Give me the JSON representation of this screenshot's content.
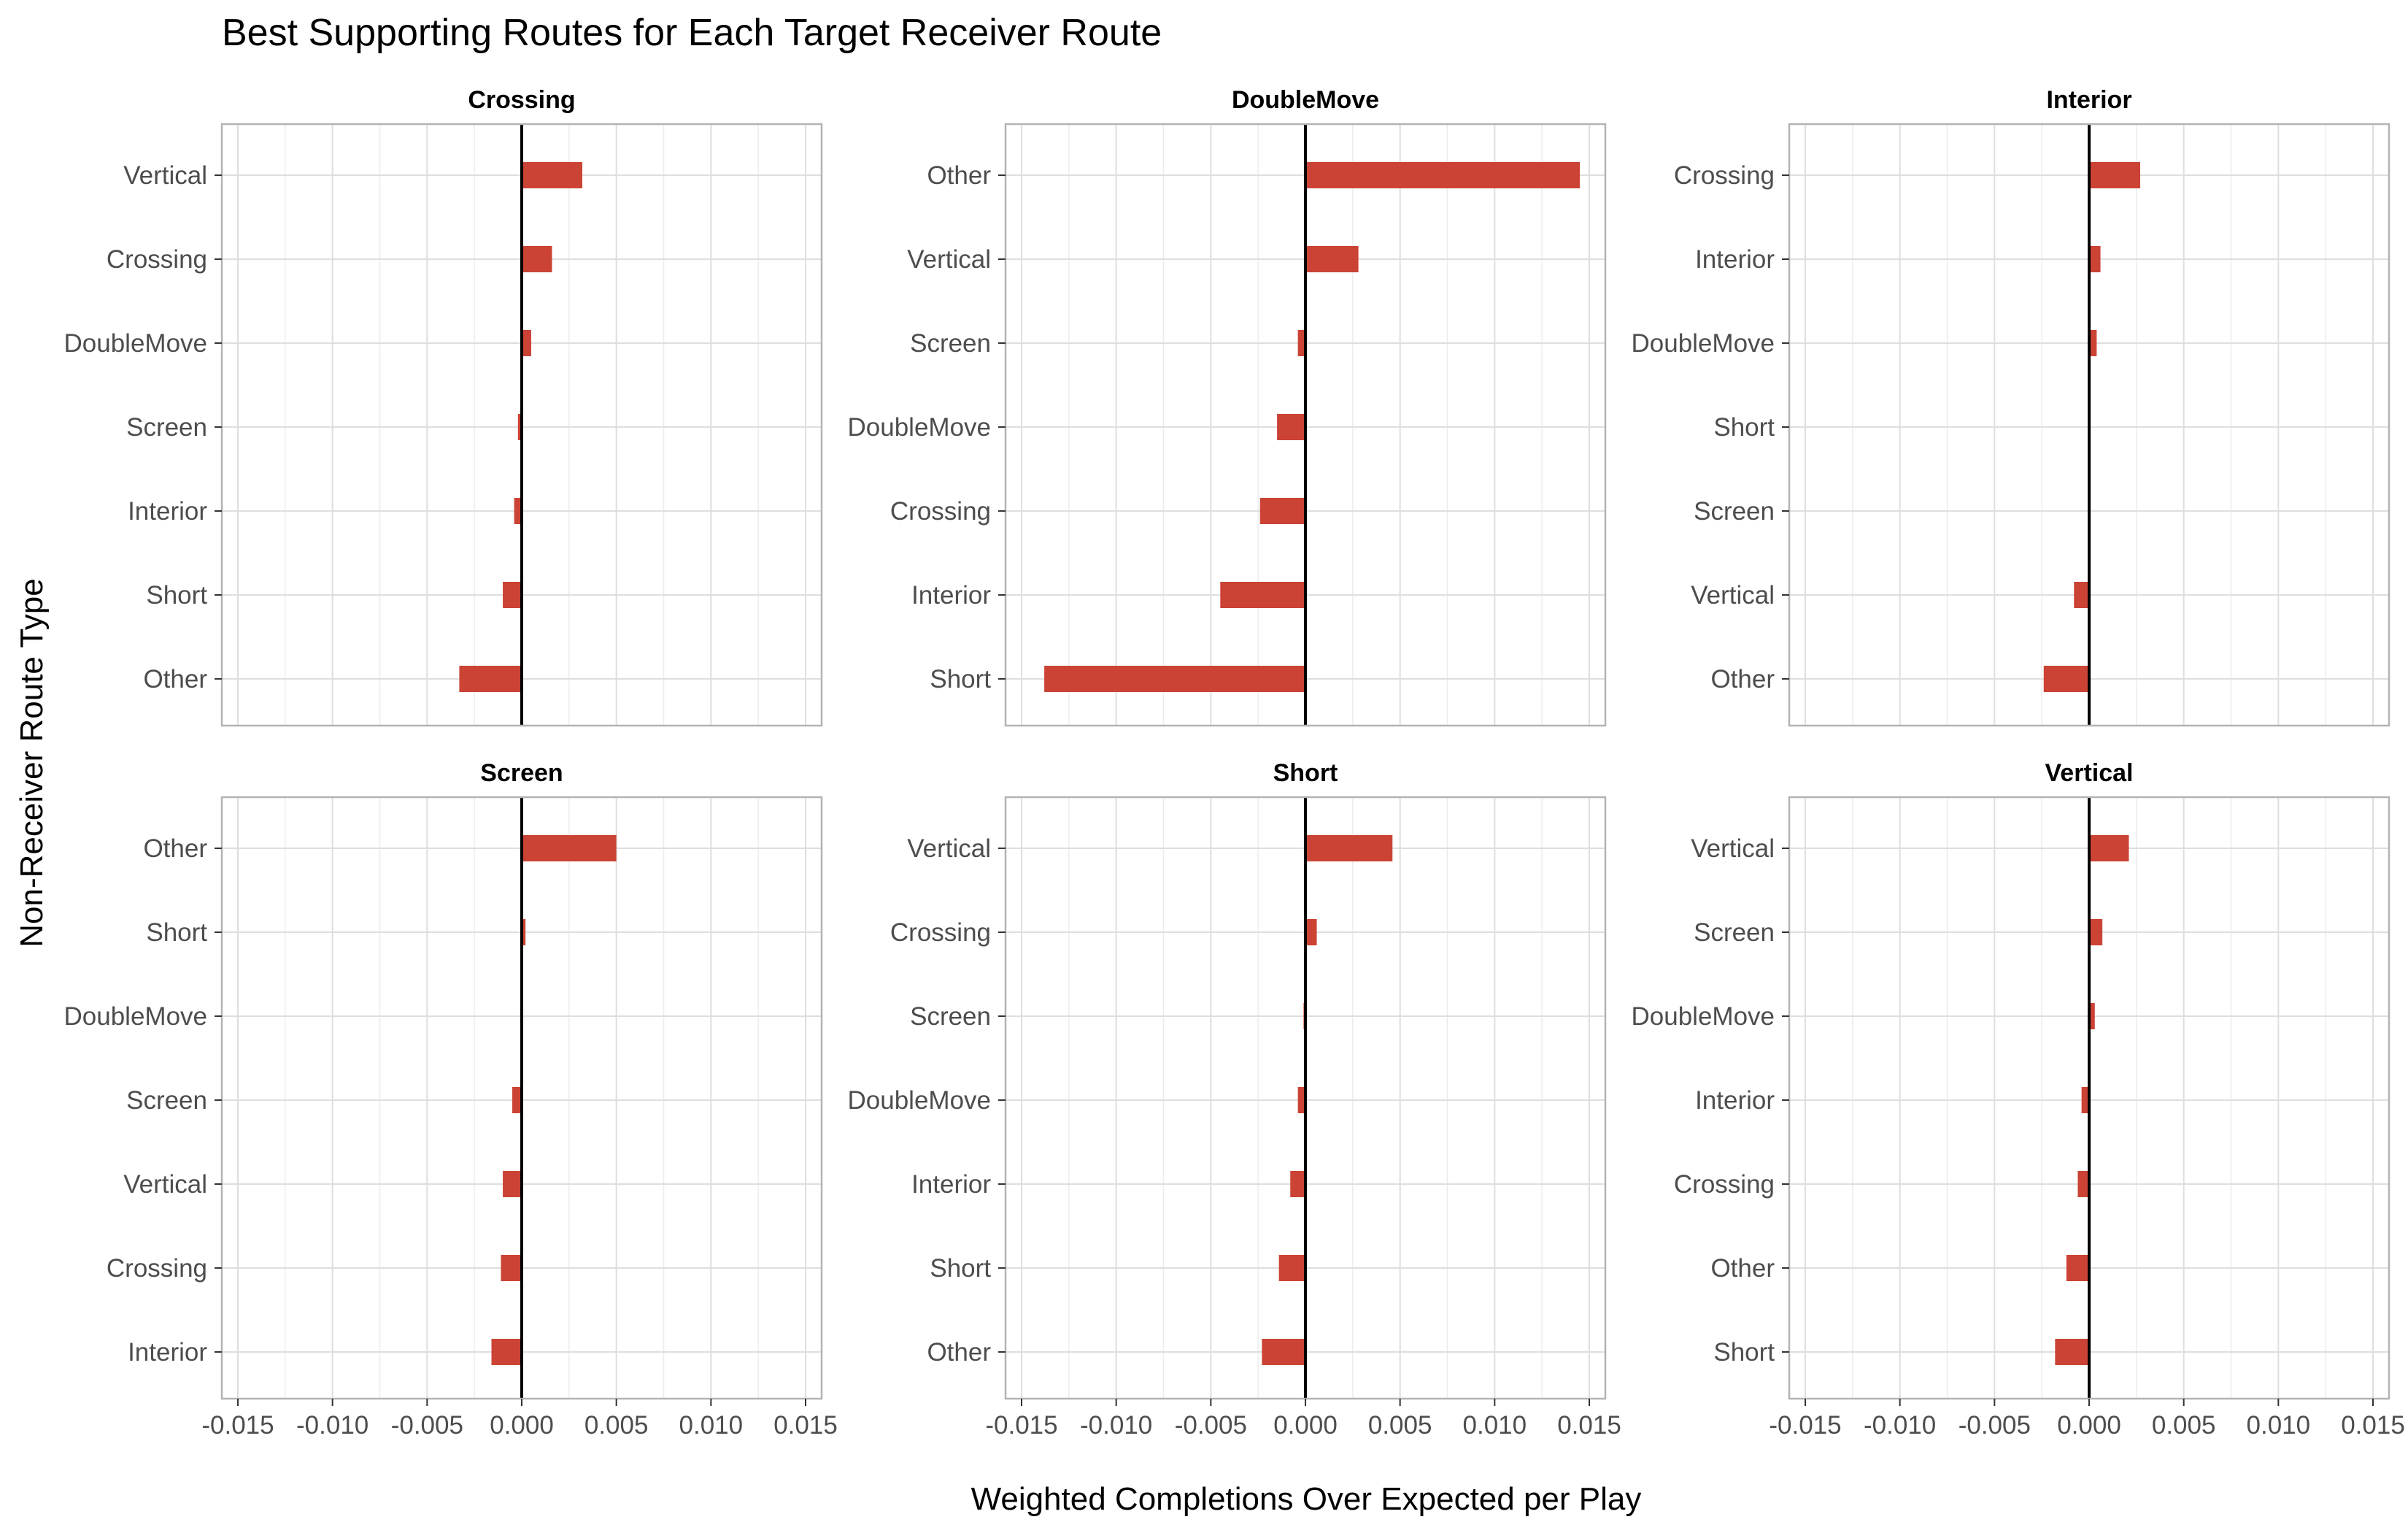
{
  "chart_data": {
    "type": "bar",
    "orientation": "horizontal",
    "title": "Best Supporting Routes for Each Target Receiver Route",
    "xlabel": "Weighted Completions Over Expected per Play",
    "ylabel": "Non-Receiver Route Type",
    "xlim": [
      -0.015,
      0.015
    ],
    "xticks": [
      -0.015,
      -0.01,
      -0.005,
      0.0,
      0.005,
      0.01,
      0.015
    ],
    "xtick_labels": [
      "-0.015",
      "-0.010",
      "-0.005",
      "0.000",
      "0.005",
      "0.010",
      "0.015"
    ],
    "grid": true,
    "legend": "none",
    "colors": {
      "bar": "#cb4335",
      "zero_line": "#000000",
      "grid": "#dedede",
      "panel_border": "#b3b3b3"
    },
    "facets": [
      {
        "name": "Crossing",
        "categories": [
          "Vertical",
          "Crossing",
          "DoubleMove",
          "Screen",
          "Interior",
          "Short",
          "Other"
        ],
        "values": [
          0.0032,
          0.0016,
          0.0005,
          -0.0002,
          -0.0004,
          -0.001,
          -0.0033
        ]
      },
      {
        "name": "DoubleMove",
        "categories": [
          "Other",
          "Vertical",
          "Screen",
          "DoubleMove",
          "Crossing",
          "Interior",
          "Short"
        ],
        "values": [
          0.0145,
          0.0028,
          -0.0004,
          -0.0015,
          -0.0024,
          -0.0045,
          -0.0138
        ]
      },
      {
        "name": "Interior",
        "categories": [
          "Crossing",
          "Interior",
          "DoubleMove",
          "Short",
          "Screen",
          "Vertical",
          "Other"
        ],
        "values": [
          0.0027,
          0.0006,
          0.0004,
          0.0,
          0.0,
          -0.0008,
          -0.0024
        ]
      },
      {
        "name": "Screen",
        "categories": [
          "Other",
          "Short",
          "DoubleMove",
          "Screen",
          "Vertical",
          "Crossing",
          "Interior"
        ],
        "values": [
          0.005,
          0.0002,
          0.0,
          -0.0005,
          -0.001,
          -0.0011,
          -0.0016
        ]
      },
      {
        "name": "Short",
        "categories": [
          "Vertical",
          "Crossing",
          "Screen",
          "DoubleMove",
          "Interior",
          "Short",
          "Other"
        ],
        "values": [
          0.0046,
          0.0006,
          -0.0001,
          -0.0004,
          -0.0008,
          -0.0014,
          -0.0023
        ]
      },
      {
        "name": "Vertical",
        "categories": [
          "Vertical",
          "Screen",
          "DoubleMove",
          "Interior",
          "Crossing",
          "Other",
          "Short"
        ],
        "values": [
          0.0021,
          0.0007,
          0.0003,
          -0.0004,
          -0.0006,
          -0.0012,
          -0.0018
        ]
      }
    ]
  }
}
